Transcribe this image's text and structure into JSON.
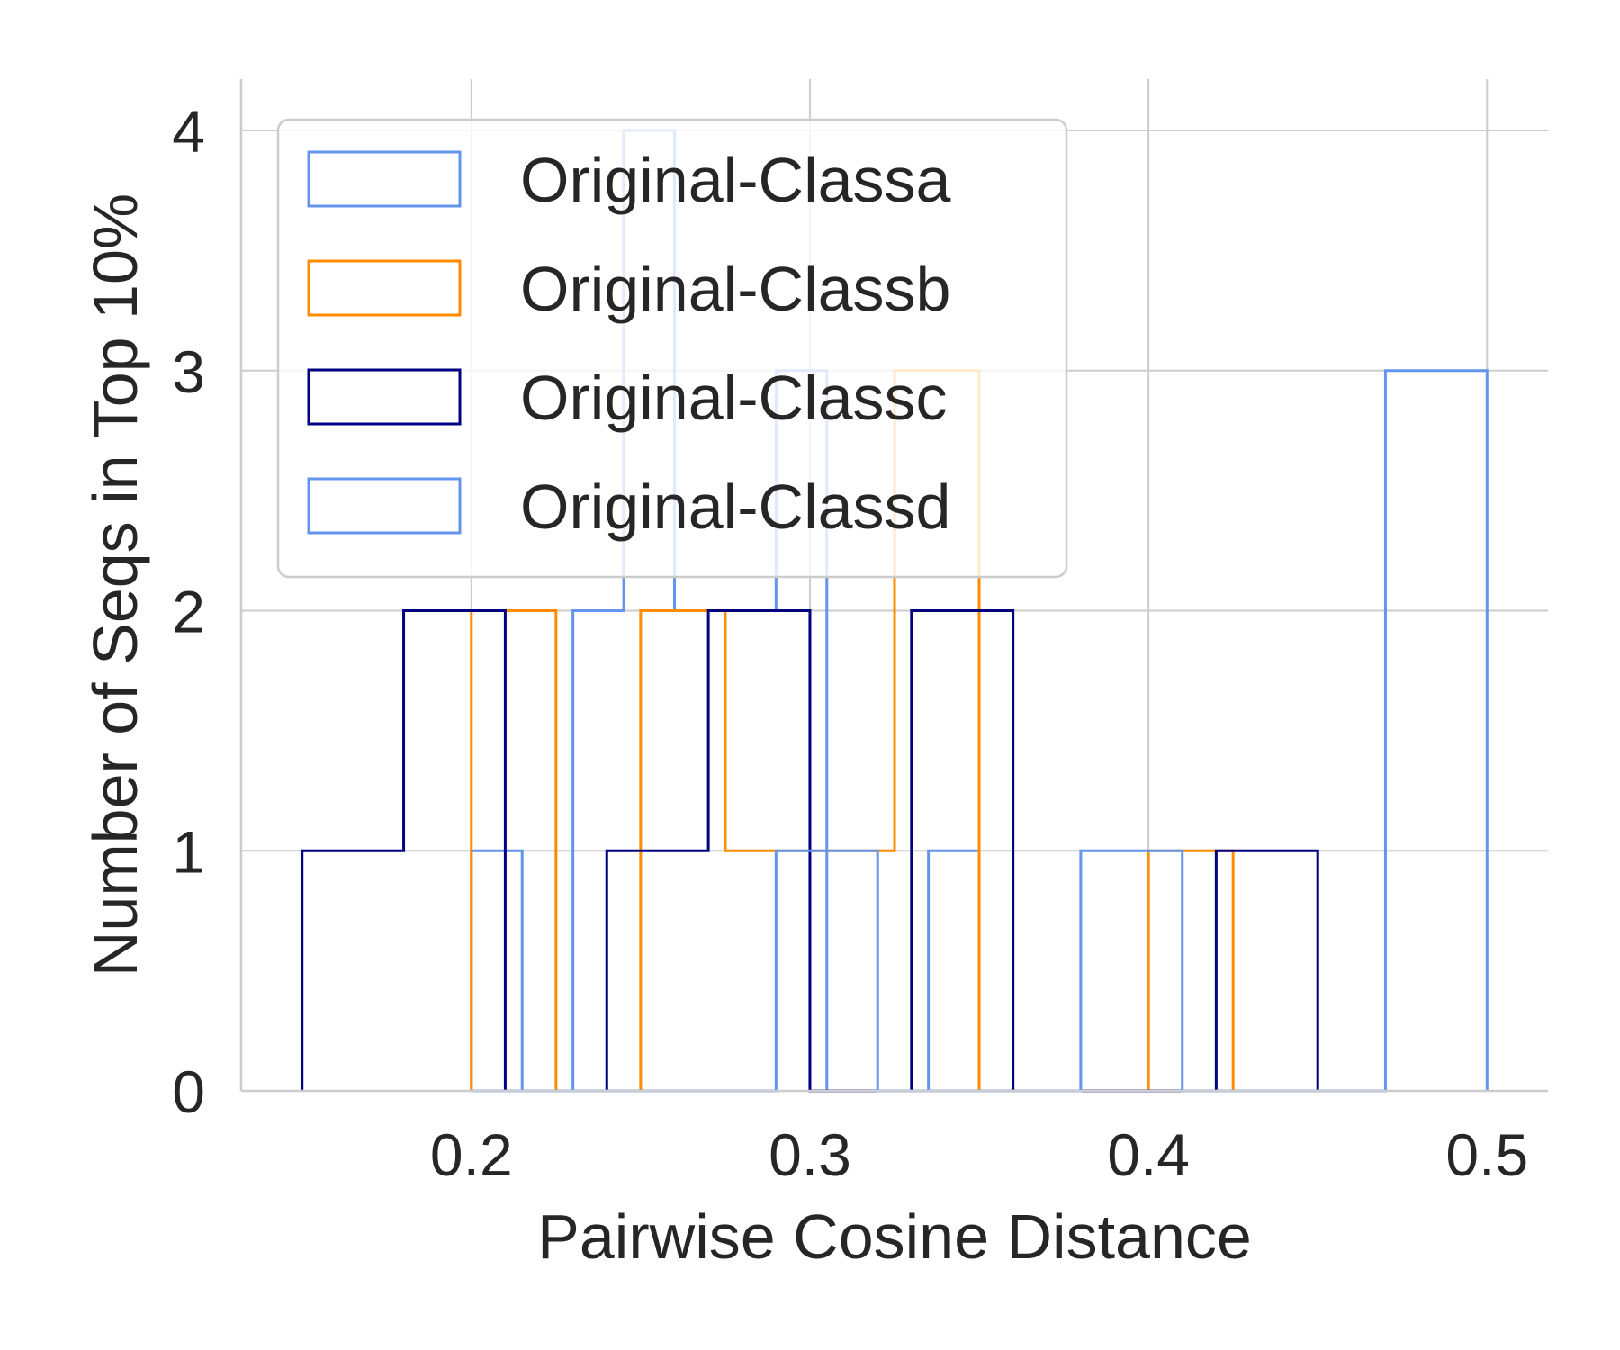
{
  "chart_data": {
    "type": "histogram",
    "title": "",
    "xlabel": "Pairwise Cosine Distance",
    "ylabel": "Number of Seqs in Top 10%",
    "xlim": [
      0.132,
      0.518
    ],
    "ylim": [
      0,
      4.2
    ],
    "xticks": [
      0.2,
      0.3,
      0.4,
      0.5
    ],
    "xtick_labels": [
      "0.2",
      "0.3",
      "0.4",
      "0.5"
    ],
    "yticks": [
      0,
      1,
      2,
      3,
      4
    ],
    "ytick_labels": [
      "0",
      "1",
      "2",
      "3",
      "4"
    ],
    "grid": true,
    "legend_position": "upper-left",
    "series": [
      {
        "name": "Original-Classa",
        "color": "#6495ED",
        "bin_edges": [
          0.2,
          0.215,
          0.23,
          0.245,
          0.26,
          0.275,
          0.29,
          0.305,
          0.32,
          0.335,
          0.35
        ],
        "counts": [
          1,
          0,
          2,
          4,
          2,
          2,
          3,
          0,
          0,
          1
        ]
      },
      {
        "name": "Original-Classb",
        "color": "#FF8C00",
        "bin_edges": [
          0.2,
          0.225,
          0.25,
          0.275,
          0.3,
          0.325,
          0.35,
          0.375,
          0.4,
          0.425
        ],
        "counts": [
          2,
          0,
          2,
          1,
          1,
          3,
          0,
          0,
          1
        ]
      },
      {
        "name": "Original-Classc",
        "color": "#000080",
        "bin_edges": [
          0.15,
          0.18,
          0.21,
          0.24,
          0.27,
          0.3,
          0.33,
          0.36,
          0.39,
          0.42,
          0.45
        ],
        "counts": [
          1,
          2,
          0,
          1,
          2,
          0,
          2,
          0,
          0,
          1
        ]
      },
      {
        "name": "Original-Classd",
        "color": "#6495ED",
        "bin_edges": [
          0.2,
          0.23,
          0.26,
          0.29,
          0.32,
          0.35,
          0.38,
          0.41,
          0.44,
          0.47,
          0.5
        ],
        "counts": [
          0,
          0,
          0,
          1,
          0,
          0,
          1,
          0,
          0,
          3
        ]
      }
    ]
  }
}
